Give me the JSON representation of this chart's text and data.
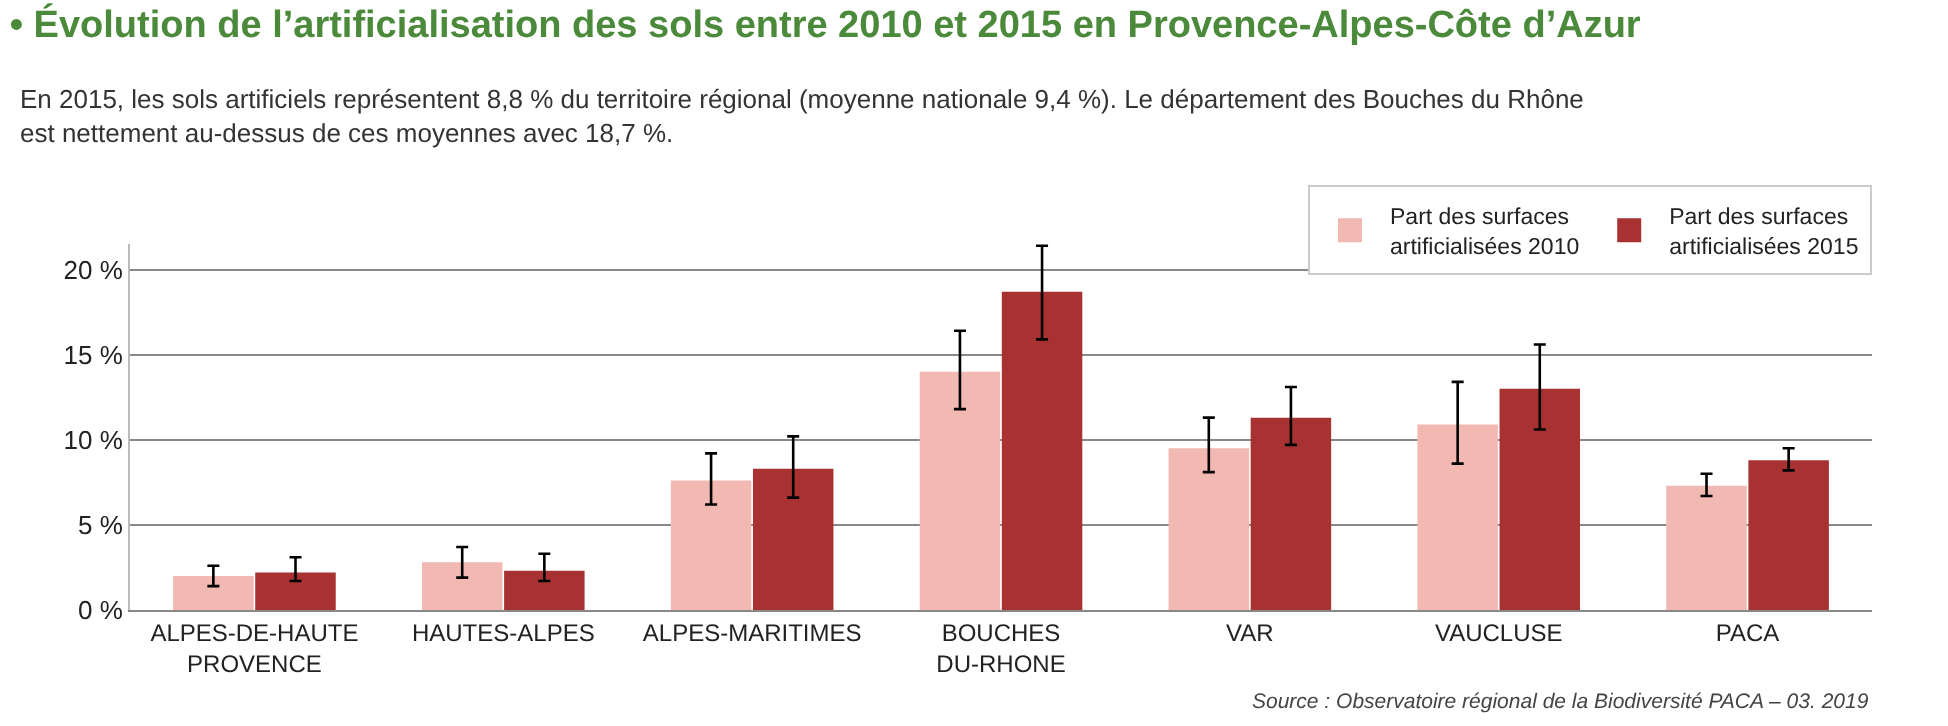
{
  "chart_data": {
    "type": "bar",
    "title": "• Évolution de l’artificialisation des sols entre 2010 et 2015 en Provence-Alpes-Côte d’Azur",
    "subtitle": "En 2015, les sols artificiels représentent 8,8 % du territoire régional (moyenne nationale 9,4 %). Le département des Bouches du Rhône\nest nettement au-dessus de ces moyennes avec 18,7 %.",
    "categories": [
      "ALPES-DE-HAUTE\nPROVENCE",
      "HAUTES-ALPES",
      "ALPES-MARITIMES",
      "BOUCHES\nDU-RHONE",
      "VAR",
      "VAUCLUSE",
      "PACA"
    ],
    "series": [
      {
        "name": "Part des surfaces\nartificialisées 2010",
        "color": "#f2b8b2",
        "values": [
          2.0,
          2.8,
          7.6,
          14.0,
          9.5,
          10.9,
          7.3
        ],
        "errors": [
          [
            1.4,
            2.6
          ],
          [
            1.9,
            3.7
          ],
          [
            6.2,
            9.2
          ],
          [
            11.8,
            16.4
          ],
          [
            8.1,
            11.3
          ],
          [
            8.6,
            13.4
          ],
          [
            6.7,
            8.0
          ]
        ]
      },
      {
        "name": "Part des surfaces\nartificialisées 2015",
        "color": "#a83232",
        "values": [
          2.2,
          2.3,
          8.3,
          18.7,
          11.3,
          13.0,
          8.8
        ],
        "errors": [
          [
            1.7,
            3.1
          ],
          [
            1.7,
            3.3
          ],
          [
            6.6,
            10.2
          ],
          [
            15.9,
            21.4
          ],
          [
            9.7,
            13.1
          ],
          [
            10.6,
            15.6
          ],
          [
            8.2,
            9.5
          ]
        ]
      }
    ],
    "ylim": [
      0,
      21.5
    ],
    "yticks": [
      {
        "value": 0,
        "label": "0 %"
      },
      {
        "value": 5,
        "label": "5 %"
      },
      {
        "value": 10,
        "label": "10 %"
      },
      {
        "value": 15,
        "label": "15 %"
      },
      {
        "value": 20,
        "label": "20 %"
      }
    ],
    "grid": "y",
    "legend": "top right",
    "annotations": [
      "Source : Observatoire régional de la Biodiversité PACA – 03. 2019"
    ]
  }
}
